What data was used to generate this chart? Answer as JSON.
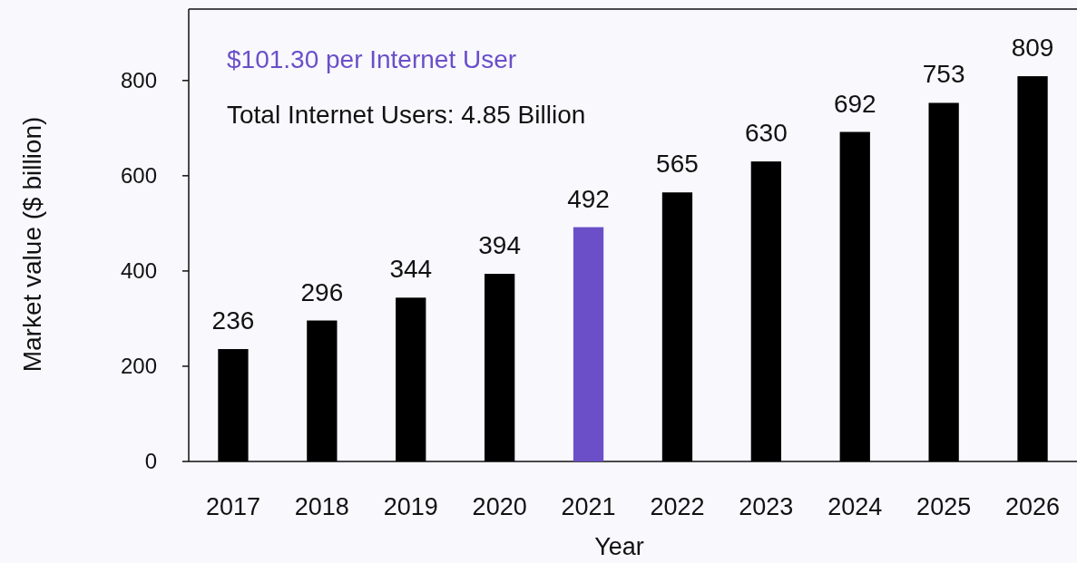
{
  "chart_data": {
    "type": "bar",
    "xlabel": "Year",
    "ylabel": "Market value ($ billion)",
    "categories": [
      "2017",
      "2018",
      "2019",
      "2020",
      "2021",
      "2022",
      "2023",
      "2024",
      "2025",
      "2026"
    ],
    "values": [
      236,
      296,
      344,
      394,
      492,
      565,
      630,
      692,
      753,
      809
    ],
    "colors": [
      "#000000",
      "#000000",
      "#000000",
      "#000000",
      "#6a4fc8",
      "#000000",
      "#000000",
      "#000000",
      "#000000",
      "#000000"
    ],
    "ylim": [
      0,
      950
    ],
    "yticks": [
      0,
      200,
      400,
      600,
      800
    ],
    "data_labels": true,
    "annotations": [
      "$101.30 per Internet User",
      "Total Internet Users: 4.85 Billion"
    ]
  }
}
